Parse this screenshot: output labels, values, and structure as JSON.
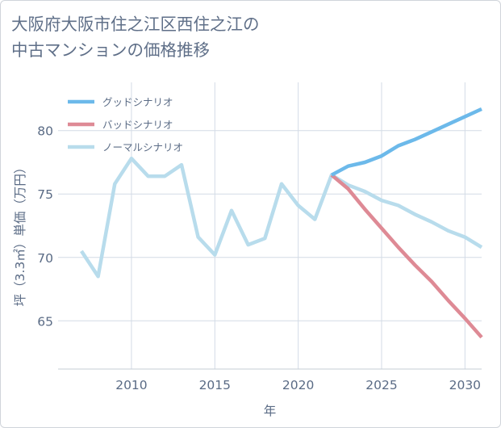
{
  "title": {
    "line1": "大阪府大阪市住之江区西住之江の",
    "line2": "中古マンションの価格推移"
  },
  "chart_data": {
    "type": "line",
    "title": "大阪府大阪市住之江区西住之江の中古マンションの価格推移",
    "xlabel": "年",
    "ylabel": "坪（3.3㎡）単価（万円）",
    "xlim": [
      2005.6,
      2031
    ],
    "ylim": [
      61.2,
      83.8
    ],
    "xticks": [
      2010,
      2015,
      2020,
      2025,
      2030
    ],
    "yticks": [
      65,
      70,
      75,
      80
    ],
    "legend_position": "top-left",
    "series": [
      {
        "name": "グッドシナリオ",
        "color": "#6cb9ea",
        "x": [
          2022,
          2023,
          2024,
          2025,
          2026,
          2027,
          2028,
          2029,
          2030,
          2031
        ],
        "values": [
          76.5,
          77.2,
          77.5,
          78.0,
          78.8,
          79.3,
          79.9,
          80.5,
          81.1,
          81.7
        ]
      },
      {
        "name": "バッドシナリオ",
        "color": "#de8a95",
        "x": [
          2022,
          2023,
          2024,
          2025,
          2026,
          2027,
          2028,
          2029,
          2030,
          2031
        ],
        "values": [
          76.5,
          75.4,
          73.8,
          72.3,
          70.8,
          69.4,
          68.1,
          66.6,
          65.2,
          63.7
        ]
      },
      {
        "name": "ノーマルシナリオ",
        "color": "#b8dcec",
        "x": [
          2007,
          2008,
          2009,
          2010,
          2011,
          2012,
          2013,
          2014,
          2015,
          2016,
          2017,
          2018,
          2019,
          2020,
          2021,
          2022,
          2023,
          2024,
          2025,
          2026,
          2027,
          2028,
          2029,
          2030,
          2031
        ],
        "values": [
          70.5,
          68.5,
          75.8,
          77.8,
          76.4,
          76.4,
          77.3,
          71.6,
          70.2,
          73.7,
          71.0,
          71.5,
          75.8,
          74.1,
          73.0,
          76.5,
          75.7,
          75.2,
          74.5,
          74.1,
          73.4,
          72.8,
          72.1,
          71.6,
          70.8
        ]
      }
    ]
  }
}
